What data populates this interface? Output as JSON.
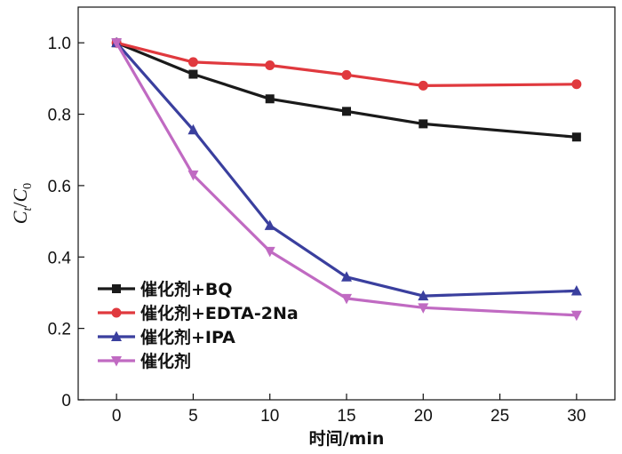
{
  "chart_data": {
    "type": "line",
    "xlabel": "时间/min",
    "ylabel": {
      "main": "C",
      "sub_t": "t",
      "slash": "/",
      "main2": "C",
      "sub_0": "0"
    },
    "xlim": [
      -2.5,
      32.5
    ],
    "ylim": [
      0,
      1.1
    ],
    "xticks": [
      0,
      5,
      10,
      15,
      20,
      25,
      30
    ],
    "xtick_labels": [
      "0",
      "5",
      "10",
      "15",
      "20",
      "25",
      "30"
    ],
    "yticks": [
      0,
      0.2,
      0.4,
      0.6,
      0.8,
      1.0
    ],
    "ytick_labels": [
      "0",
      "0.2",
      "0.4",
      "0.6",
      "0.8",
      "1.0"
    ],
    "grid": false,
    "legend_position": "lower-left",
    "x": [
      0,
      5,
      10,
      15,
      20,
      30
    ],
    "series": [
      {
        "name": "催化剂+BQ",
        "color": "#1a1a1a",
        "marker": "square",
        "values": [
          1.0,
          0.912,
          0.843,
          0.808,
          0.773,
          0.736
        ]
      },
      {
        "name": "催化剂+EDTA-2Na",
        "color": "#e0393e",
        "marker": "circle",
        "values": [
          1.0,
          0.946,
          0.937,
          0.91,
          0.88,
          0.884
        ]
      },
      {
        "name": "催化剂+IPA",
        "color": "#3a3f9e",
        "marker": "triangle-up",
        "values": [
          1.0,
          0.756,
          0.488,
          0.344,
          0.291,
          0.305
        ]
      },
      {
        "name": "催化剂",
        "color": "#c06ac2",
        "marker": "triangle-down",
        "values": [
          1.0,
          0.63,
          0.416,
          0.284,
          0.258,
          0.237
        ]
      }
    ]
  }
}
